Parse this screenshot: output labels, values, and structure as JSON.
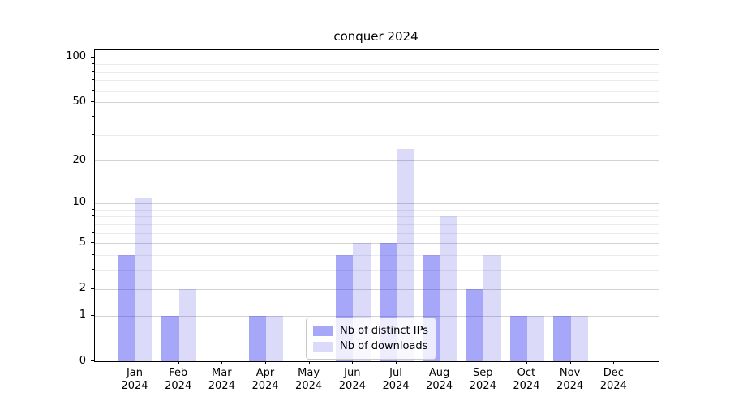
{
  "title": "conquer 2024",
  "chart_data": {
    "type": "bar",
    "title": "conquer 2024",
    "categories": [
      "Jan",
      "Feb",
      "Mar",
      "Apr",
      "May",
      "Jun",
      "Jul",
      "Aug",
      "Sep",
      "Oct",
      "Nov",
      "Dec"
    ],
    "category_year": "2024",
    "series": [
      {
        "name": "Nb of distinct IPs",
        "color": "rgba(45,45,240,0.42)",
        "values": [
          4,
          1,
          0,
          1,
          0,
          4,
          5,
          4,
          2,
          1,
          1,
          0
        ]
      },
      {
        "name": "Nb of downloads",
        "color": "rgba(30,30,220,0.16)",
        "values": [
          11,
          2,
          0,
          1,
          0,
          5,
          24,
          8,
          4,
          1,
          1,
          0
        ]
      }
    ],
    "xlabel": "",
    "ylabel": "",
    "yscale": "log1p",
    "ylim": [
      0,
      111.2
    ],
    "yticks": [
      0,
      1,
      2,
      5,
      10,
      20,
      50,
      100
    ],
    "ytick_labels": [
      "0",
      "1",
      "2",
      "5",
      "10",
      "20",
      "50",
      "100"
    ],
    "yminor_ticks": [
      3,
      4,
      6,
      7,
      8,
      9,
      30,
      40,
      60,
      70,
      80,
      90
    ],
    "grid": "both",
    "legend_position": "lower center"
  },
  "colors": {
    "grid_major": "#d2d2d2",
    "grid_minor": "#ebebeb",
    "axis": "#000000",
    "background": "#ffffff"
  }
}
